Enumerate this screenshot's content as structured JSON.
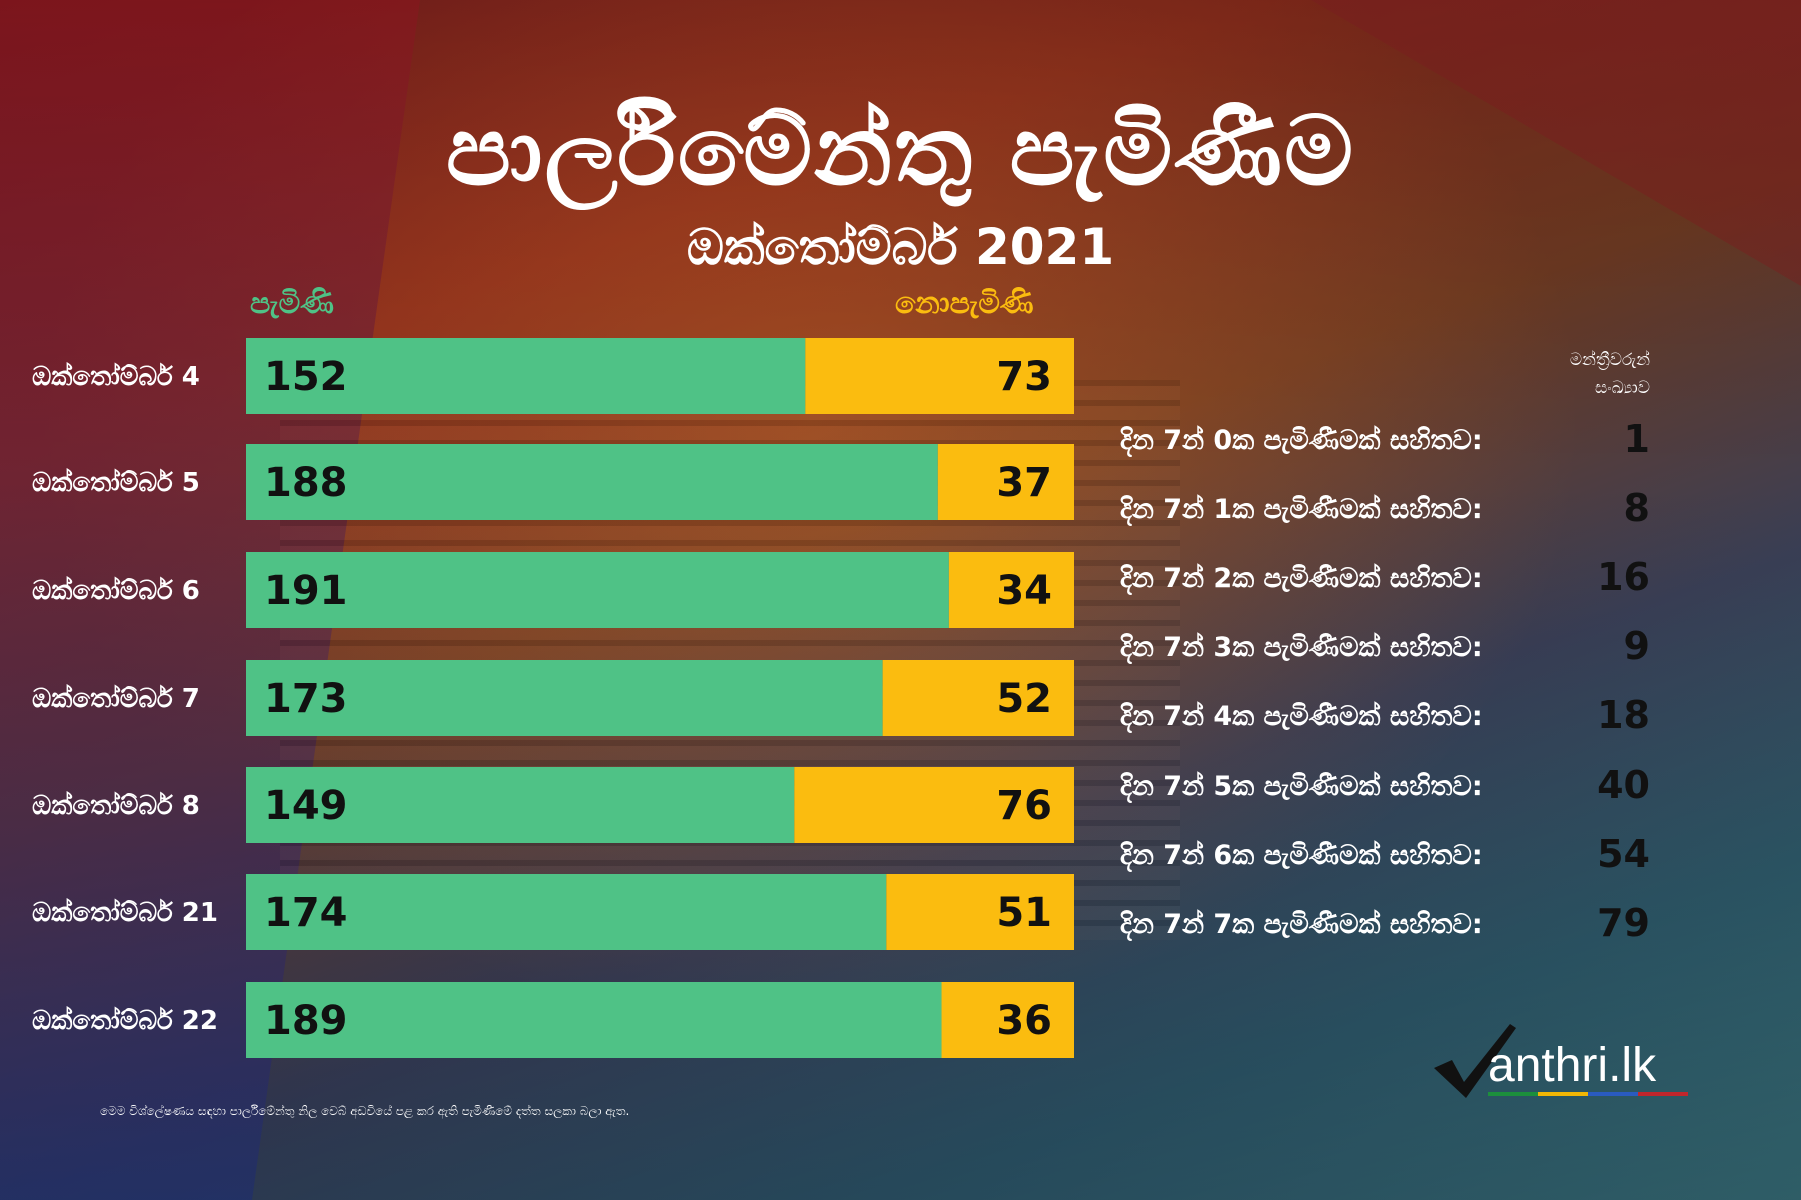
{
  "title": "පාර්ලිමේන්තු පැමිණීම",
  "subtitle": "ඔක්තෝම්බර් 2021",
  "legend": {
    "present": "පැමිණි",
    "absent": "නොපැමිණි",
    "present_color": "#4fc286",
    "absent_color": "#fbbc0f"
  },
  "chart_data": {
    "type": "bar",
    "orientation": "horizontal",
    "stacked": true,
    "categories": [
      "ඔක්තෝම්බර් 4",
      "ඔක්තෝම්බර් 5",
      "ඔක්තෝම්බර් 6",
      "ඔක්තෝම්බර් 7",
      "ඔක්තෝම්බර් 8",
      "ඔක්තෝම්බර් 21",
      "ඔක්තෝම්බර් 22"
    ],
    "series": [
      {
        "name": "පැමිණි",
        "values": [
          152,
          188,
          191,
          173,
          149,
          174,
          189
        ],
        "color": "#4fc286"
      },
      {
        "name": "නොපැමිණි",
        "values": [
          73,
          37,
          34,
          52,
          76,
          51,
          36
        ],
        "color": "#fbbc0f"
      }
    ],
    "xlim": [
      0,
      225
    ],
    "grid": false,
    "legend_position": "top"
  },
  "side_panel": {
    "header_line1": "මන්ත්‍රීවරුන්",
    "header_line2": "සංඛ්‍යාව",
    "rows": [
      {
        "label": "දින 7න් 0ක පැමිණීමක් සහිතව:",
        "value": "1"
      },
      {
        "label": "දින 7න් 1ක පැමිණීමක් සහිතව:",
        "value": "8"
      },
      {
        "label": "දින 7න් 2ක පැමිණීමක් සහිතව:",
        "value": "16"
      },
      {
        "label": "දින 7න් 3ක පැමිණීමක් සහිතව:",
        "value": "9"
      },
      {
        "label": "දින 7න් 4ක පැමිණීමක් සහිතව:",
        "value": "18"
      },
      {
        "label": "දින 7න් 5ක පැමිණීමක් සහිතව:",
        "value": "40"
      },
      {
        "label": "දින 7න් 6ක පැමිණීමක් සහිතව:",
        "value": "54"
      },
      {
        "label": "දින 7න් 7ක පැමිණීමක් සහිතව:",
        "value": "79"
      }
    ]
  },
  "footnote": "මෙම විශ්ලේෂණය සඳහා පාර්ලිමේන්තු නිල වෙබ් අඩවියේ පළ කර ඇති පැමිණීමේ දත්ත සලකා බලා ඇත.",
  "logo": {
    "text": "anthri.lk",
    "icon": "checkmark-m-icon"
  }
}
